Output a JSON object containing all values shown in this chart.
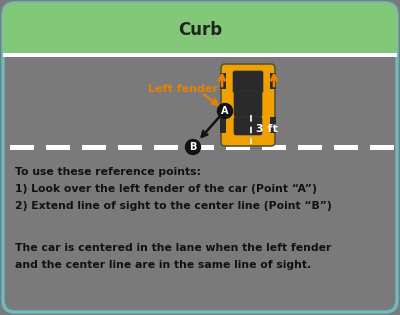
{
  "curb_label": "Curb",
  "curb_color": "#82c878",
  "road_color": "#7a7a7a",
  "border_color": "#6bbcbc",
  "fender_label": "Left fender",
  "fender_color": "#e88000",
  "distance_label": "3 ft",
  "point_color": "#1a1a1a",
  "text_lines": [
    "To use these reference points:",
    "1) Look over the left fender of the car (Point “A”)",
    "2) Extend line of sight to the center line (Point “B”)",
    "",
    "The car is centered in the lane when the left fender",
    "and the center line are in the same line of sight."
  ],
  "fig_width": 4.0,
  "fig_height": 3.15,
  "dpi": 100
}
